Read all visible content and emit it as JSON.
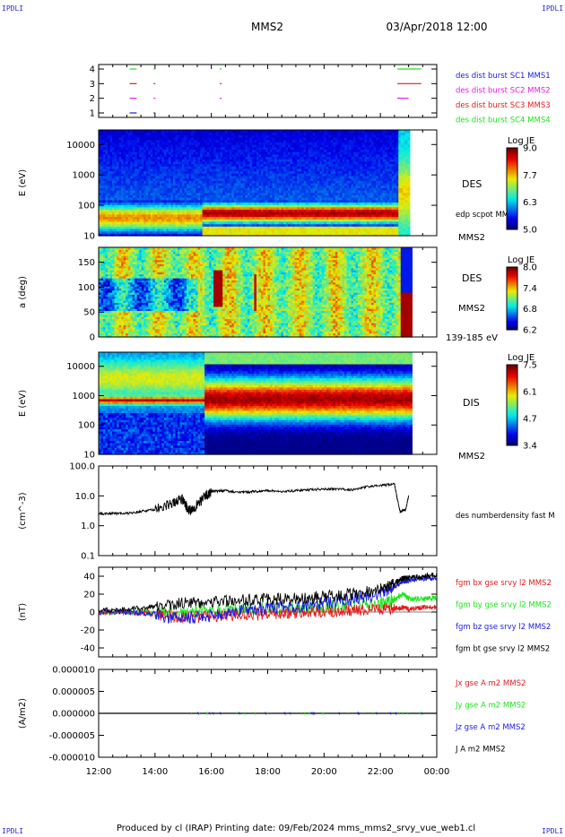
{
  "header": {
    "corner_label": "IPDLI",
    "spacecraft": "MMS2",
    "datetime": "03/Apr/2018 12:00",
    "footer": "Produced by cl (IRAP)    Printing date: 09/Feb/2024    mms_mms2_srvy_vue_web1.cl"
  },
  "colors": {
    "blue": "#1a1ae6",
    "magenta": "#e619e6",
    "red": "#e61919",
    "green": "#19e619",
    "black": "#000000"
  },
  "chart_data": [
    {
      "type": "line",
      "panel": "burst-flags",
      "ylim": [
        1,
        4
      ],
      "yticks": [
        "1",
        "2",
        "3",
        "4"
      ],
      "x": [
        "12:00",
        "14:00",
        "16:00",
        "18:00",
        "20:00",
        "22:00",
        "00:00"
      ],
      "legend": [
        "des dist burst SC1 MMS1",
        "des dist burst SC2 MMS2",
        "des dist burst SC3 MMS3",
        "des dist burst SC4 MMS4"
      ],
      "legend_colors": [
        "#1a1ae6",
        "#e619e6",
        "#e61919",
        "#19e619"
      ],
      "series": [
        {
          "name": "des dist burst SC1 MMS1",
          "level": 1,
          "color": "#1a1ae6",
          "intervals": [
            [
              13.1,
              13.35
            ],
            [
              13.95,
              14.0
            ]
          ]
        },
        {
          "name": "des dist burst SC2 MMS2",
          "level": 2,
          "color": "#e619e6",
          "intervals": [
            [
              13.1,
              13.35
            ],
            [
              13.95,
              14.0
            ],
            [
              16.3,
              16.33
            ],
            [
              22.6,
              23.0
            ]
          ]
        },
        {
          "name": "des dist burst SC3 MMS3",
          "level": 3,
          "color": "#e61919",
          "intervals": [
            [
              13.1,
              13.35
            ],
            [
              13.95,
              14.0
            ],
            [
              16.3,
              16.33
            ],
            [
              22.6,
              23.45
            ]
          ]
        },
        {
          "name": "des dist burst SC4 MMS4",
          "level": 4,
          "color": "#19e619",
          "intervals": [
            [
              13.1,
              13.35
            ],
            [
              13.95,
              14.0
            ],
            [
              16.3,
              16.33
            ],
            [
              22.6,
              23.45
            ]
          ]
        }
      ]
    },
    {
      "type": "heatmap",
      "panel": "des-energy",
      "ylabel": "E (eV)",
      "yscale": "log",
      "ylim": [
        10,
        30000
      ],
      "yticks": [
        "10",
        "100",
        "1000",
        "10000"
      ],
      "side_labels": [
        "DES",
        "edp scpot MMS2",
        "MMS2"
      ],
      "colorbar": {
        "title": "Log JE",
        "min": 5.0,
        "max": 9.0,
        "ticks": [
          "5.0",
          "6.3",
          "7.7",
          "9.0"
        ]
      },
      "data_end_hour": 23.0
    },
    {
      "type": "heatmap",
      "panel": "des-pitch-angle",
      "ylabel": "a (deg)",
      "ylim": [
        0,
        180
      ],
      "yticks": [
        "0",
        "50",
        "100",
        "150"
      ],
      "side_labels": [
        "DES",
        "MMS2",
        "139-185 eV"
      ],
      "colorbar": {
        "title": "Log JE",
        "min": 6.2,
        "max": 8.0,
        "ticks": [
          "6.2",
          "6.8",
          "7.4",
          "8.0"
        ]
      },
      "data_end_hour": 23.1
    },
    {
      "type": "heatmap",
      "panel": "dis-energy",
      "ylabel": "E (eV)",
      "yscale": "log",
      "ylim": [
        10,
        30000
      ],
      "yticks": [
        "10",
        "100",
        "1000",
        "10000"
      ],
      "side_labels": [
        "DIS",
        "MMS2"
      ],
      "colorbar": {
        "title": "Log JE",
        "min": 3.4,
        "max": 7.5,
        "ticks": [
          "3.4",
          "4.7",
          "6.1",
          "7.5"
        ]
      },
      "data_end_hour": 23.1
    },
    {
      "type": "line",
      "panel": "density",
      "ylabel": "(cm^-3)",
      "yscale": "log",
      "ylim": [
        0.1,
        100
      ],
      "yticks": [
        "0.1",
        "1.0",
        "10.0",
        "100.0"
      ],
      "legend": [
        "des numberdensity fast M"
      ],
      "series": [
        {
          "name": "des numberdensity fast M",
          "color": "#000000",
          "x": [
            12.0,
            12.5,
            13.0,
            13.5,
            14.0,
            14.5,
            15.0,
            15.2,
            15.5,
            15.8,
            16.0,
            16.5,
            17.0,
            17.5,
            18.0,
            18.5,
            19.0,
            19.5,
            20.0,
            20.5,
            21.0,
            21.5,
            22.0,
            22.5,
            22.6,
            22.7,
            22.9,
            23.0
          ],
          "y": [
            2.5,
            2.6,
            2.6,
            3.0,
            3.5,
            5.0,
            8.0,
            3.0,
            5.0,
            10.0,
            14.0,
            15.0,
            13.0,
            14.0,
            15.0,
            14.0,
            15.0,
            16.0,
            17.0,
            17.0,
            16.0,
            20.0,
            22.0,
            25.0,
            8.0,
            3.0,
            3.5,
            10.0
          ]
        }
      ]
    },
    {
      "type": "line",
      "panel": "magnetic-field",
      "ylabel": "(nT)",
      "ylim": [
        -50,
        50
      ],
      "yticks": [
        "-40",
        "-20",
        "0",
        "20",
        "40"
      ],
      "legend": [
        "fgm bx gse srvy l2 MMS2",
        "fgm by gse srvy l2 MMS2",
        "fgm bz gse srvy l2 MMS2",
        "fgm bt gse srvy l2 MMS2"
      ],
      "legend_colors": [
        "#e61919",
        "#19e619",
        "#1a1ae6",
        "#000000"
      ],
      "series": [
        {
          "name": "fgm bx gse srvy l2 MMS2",
          "color": "#e61919",
          "x": [
            12,
            13,
            14,
            15,
            16,
            17,
            18,
            19,
            20,
            21,
            22,
            22.5,
            22.8,
            23,
            23.5,
            24
          ],
          "y": [
            0,
            0,
            -2,
            -6,
            -5,
            -3,
            -2,
            -1,
            0,
            2,
            3,
            4,
            5,
            3,
            5,
            5
          ]
        },
        {
          "name": "fgm by gse srvy l2 MMS2",
          "color": "#19e619",
          "x": [
            12,
            13,
            14,
            15,
            16,
            17,
            18,
            19,
            20,
            21,
            22,
            22.5,
            22.8,
            23,
            23.5,
            24
          ],
          "y": [
            0,
            0,
            0,
            1,
            2,
            3,
            4,
            5,
            6,
            8,
            10,
            14,
            20,
            15,
            15,
            16
          ]
        },
        {
          "name": "fgm bz gse srvy l2 MMS2",
          "color": "#1a1ae6",
          "x": [
            12,
            13,
            14,
            15,
            16,
            17,
            18,
            19,
            20,
            21,
            22,
            22.5,
            22.8,
            23,
            23.5,
            24
          ],
          "y": [
            0,
            0,
            -3,
            -8,
            -4,
            2,
            4,
            6,
            10,
            14,
            20,
            28,
            35,
            35,
            37,
            38
          ]
        },
        {
          "name": "fgm bt gse srvy l2 MMS2",
          "color": "#000000",
          "x": [
            12,
            13,
            14,
            15,
            16,
            17,
            18,
            19,
            20,
            21,
            22,
            22.5,
            22.8,
            23,
            23.5,
            24
          ],
          "y": [
            2,
            3,
            6,
            10,
            12,
            13,
            14,
            15,
            17,
            20,
            25,
            32,
            38,
            38,
            40,
            42
          ]
        }
      ]
    },
    {
      "type": "line",
      "panel": "current-density",
      "ylabel": "(A/m2)",
      "ylim": [
        -1e-05,
        1e-05
      ],
      "yticks": [
        "-0.000010",
        "-0.000005",
        "0.000000",
        "0.000005",
        "0.000010"
      ],
      "xticks": [
        "12:00",
        "14:00",
        "16:00",
        "18:00",
        "20:00",
        "22:00",
        "00:00"
      ],
      "legend": [
        "Jx gse A m2 MMS2",
        "Jy gse A m2 MMS2",
        "Jz gse A m2 MMS2",
        "J A m2 MMS2"
      ],
      "legend_colors": [
        "#e61919",
        "#19e619",
        "#1a1ae6",
        "#000000"
      ],
      "series": [
        {
          "name": "J A m2 MMS2",
          "color": "#000000",
          "x": [
            12,
            24
          ],
          "y": [
            0.0,
            0.0
          ]
        }
      ]
    }
  ]
}
